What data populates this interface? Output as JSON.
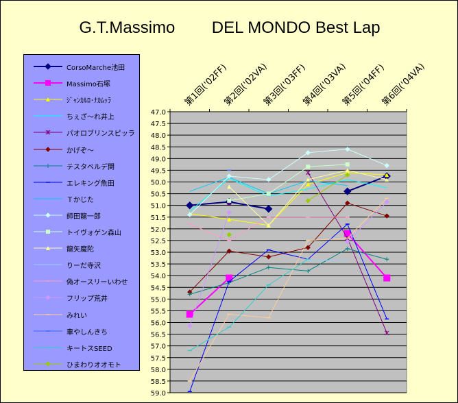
{
  "chart_data": {
    "type": "line",
    "title": "G.T.Massimo        DEL MONDO Best Lap",
    "categories": [
      "第1回('02FF)",
      "第2回('02VA)",
      "第3回('03FF)",
      "第4回('03VA)",
      "第5回('04FF)",
      "第6回('04VA)"
    ],
    "ylim": [
      47.0,
      59.0
    ],
    "y_reversed": true,
    "y_ticks": [
      "47.0",
      "47.5",
      "48.0",
      "48.5",
      "49.0",
      "49.5",
      "50.0",
      "50.5",
      "51.0",
      "51.5",
      "52.0",
      "52.5",
      "53.0",
      "53.5",
      "54.0",
      "54.5",
      "55.0",
      "55.5",
      "56.0",
      "56.5",
      "57.0",
      "57.5",
      "58.0",
      "58.5",
      "59.0"
    ],
    "plot_background": "#c0c0c0",
    "grid": true,
    "legend_placement": "left",
    "series": [
      {
        "name": "CorsoMarche池田",
        "color": "#000080",
        "marker": "diamond",
        "width": 2,
        "values": [
          51.0,
          50.85,
          51.15,
          null,
          50.4,
          49.75
        ]
      },
      {
        "name": "Massimo石塚",
        "color": "#ff00ff",
        "marker": "square",
        "width": 2,
        "values": [
          55.65,
          54.1,
          null,
          null,
          52.2,
          54.1
        ]
      },
      {
        "name": "ｼﾞｬﾝｶﾙﾛ･ﾅｶﾑｯﾗ",
        "color": "#ffff00",
        "marker": "triangle",
        "width": 1,
        "values": [
          51.35,
          51.6,
          51.85,
          50.1,
          49.6,
          49.7
        ]
      },
      {
        "name": "ちぇざ～れ井上",
        "color": "#00ffff",
        "marker": "none",
        "width": 1,
        "values": [
          51.25,
          49.85,
          50.6,
          50.3,
          49.9,
          50.25
        ]
      },
      {
        "name": "パオロブリンスピッラ",
        "color": "#800080",
        "marker": "star",
        "width": 1,
        "values": [
          null,
          50.9,
          null,
          49.6,
          52.4,
          56.45
        ]
      },
      {
        "name": "かげぞ～",
        "color": "#800000",
        "marker": "diamond",
        "width": 1,
        "values": [
          54.7,
          52.95,
          53.2,
          52.8,
          50.9,
          51.45
        ]
      },
      {
        "name": "テスタベルデ関",
        "color": "#008080",
        "marker": "plus",
        "width": 1,
        "values": [
          54.8,
          54.3,
          53.65,
          53.8,
          52.85,
          53.3
        ]
      },
      {
        "name": "エレキング魚田",
        "color": "#0000ff",
        "marker": "dash",
        "width": 1,
        "values": [
          58.95,
          54.25,
          52.9,
          53.3,
          51.8,
          55.85
        ]
      },
      {
        "name": "Ｔかじた",
        "color": "#00ccff",
        "marker": "none",
        "width": 1,
        "values": [
          50.4,
          49.8,
          50.5,
          49.95,
          50.15,
          null
        ]
      },
      {
        "name": "師田龍一郎",
        "color": "#ccffff",
        "marker": "diamond",
        "width": 1,
        "values": [
          51.4,
          49.75,
          49.9,
          48.75,
          48.6,
          49.3
        ]
      },
      {
        "name": "トイヴォゲン森山",
        "color": "#ccffcc",
        "marker": "square",
        "width": 1,
        "values": [
          null,
          50.8,
          50.5,
          49.35,
          49.25,
          null
        ]
      },
      {
        "name": "龍矢魔陀",
        "color": "#ffff99",
        "marker": "triangle",
        "width": 1,
        "values": [
          null,
          50.2,
          51.85,
          49.9,
          49.5,
          49.9
        ]
      },
      {
        "name": "りーだ寺沢",
        "color": "#99ccff",
        "marker": "none",
        "width": 1,
        "values": [
          null,
          null,
          null,
          53.35,
          53.35,
          null
        ]
      },
      {
        "name": "偽オースリーいわせ",
        "color": "#ff99cc",
        "marker": "dash",
        "width": 1,
        "values": [
          51.8,
          52.5,
          51.5,
          51.5,
          51.5,
          null
        ]
      },
      {
        "name": "フリップ荒井",
        "color": "#cc99ff",
        "marker": "diamond",
        "width": 1,
        "values": [
          56.15,
          51.3,
          null,
          null,
          52.55,
          50.85
        ]
      },
      {
        "name": "みれい",
        "color": "#ffcc99",
        "marker": "dash",
        "width": 1,
        "values": [
          58.5,
          55.65,
          55.8,
          52.5,
          52.4,
          50.7
        ]
      },
      {
        "name": "車やしんきち",
        "color": "#3366ff",
        "marker": "dash",
        "width": 1,
        "values": [
          null,
          49.5,
          null,
          null,
          null,
          null
        ]
      },
      {
        "name": "キートスSEED",
        "color": "#33cccc",
        "marker": "dash",
        "width": 1,
        "values": [
          57.2,
          56.2,
          54.4,
          53.3,
          null,
          null
        ]
      },
      {
        "name": "ひまわりオオモト",
        "color": "#99cc00",
        "marker": "diamond",
        "width": 1,
        "values": [
          null,
          52.25,
          null,
          50.8,
          49.7,
          null
        ]
      }
    ]
  }
}
